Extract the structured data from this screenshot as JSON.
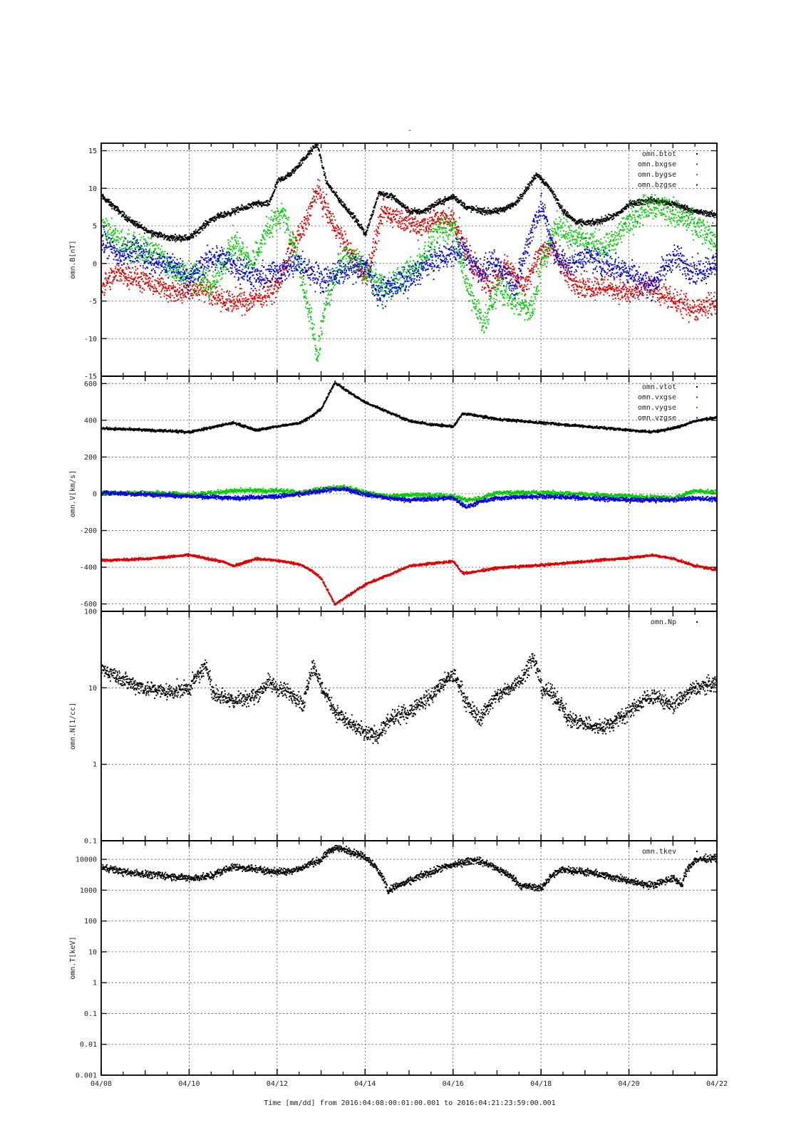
{
  "title": "-",
  "xaxis": {
    "label": "Time [mm/dd]  from 2016:04:08:00:01:00.001  to  2016:04:21:23:59:00.001",
    "range_days": [
      0,
      14
    ],
    "ticks": [
      {
        "day": 0,
        "label": "04/08"
      },
      {
        "day": 2,
        "label": "04/10"
      },
      {
        "day": 4,
        "label": "04/12"
      },
      {
        "day": 6,
        "label": "04/14"
      },
      {
        "day": 8,
        "label": "04/16"
      },
      {
        "day": 10,
        "label": "04/18"
      },
      {
        "day": 12,
        "label": "04/20"
      },
      {
        "day": 14,
        "label": "04/22"
      }
    ]
  },
  "colors": {
    "btot": "#000000",
    "bx": "#dd0000",
    "by": "#00cc00",
    "bz": "#0000dd",
    "grid": "#555555"
  },
  "chart_data": [
    {
      "type": "scatter",
      "ylabel": "omn.B[nT]",
      "ylim": [
        -15,
        16
      ],
      "scale": "linear",
      "yticks": [
        {
          "v": 15,
          "label": "15"
        },
        {
          "v": 10,
          "label": "10"
        },
        {
          "v": 5,
          "label": "5"
        },
        {
          "v": 0,
          "label": "0"
        },
        {
          "v": -5,
          "label": "-5"
        },
        {
          "v": -10,
          "label": "-10"
        },
        {
          "v": -15,
          "label": "-15"
        }
      ],
      "legend": [
        "omn.btot",
        "omn.bxgse",
        "omn.bygse",
        "omn.bzgse"
      ],
      "series": [
        {
          "name": "omn.btot",
          "color": "#000000",
          "noise": 0.35,
          "x": [
            0,
            0.3,
            0.6,
            1,
            1.5,
            2,
            2.5,
            3,
            3.5,
            3.8,
            4,
            4.3,
            4.6,
            4.9,
            5.1,
            5.4,
            5.7,
            6,
            6.3,
            6.6,
            7,
            7.3,
            7.6,
            8,
            8.3,
            8.7,
            9,
            9.4,
            9.9,
            10.2,
            10.5,
            10.8,
            11.2,
            11.7,
            12,
            12.5,
            13,
            13.5,
            14
          ],
          "y": [
            9,
            7.5,
            6,
            4.5,
            3.5,
            3.5,
            6,
            7,
            8,
            8,
            11,
            12,
            14,
            16,
            11,
            8.5,
            6.5,
            4,
            9.5,
            9,
            7,
            7,
            8,
            9,
            7.5,
            7,
            7,
            8,
            12,
            10,
            7,
            5.5,
            5.5,
            6.5,
            8,
            8.5,
            8,
            7,
            6.5
          ]
        },
        {
          "name": "omn.bxgse",
          "color": "#dd0000",
          "noise": 1.3,
          "x": [
            0,
            0.4,
            0.8,
            1.3,
            1.8,
            2.3,
            2.8,
            3.3,
            3.7,
            4,
            4.3,
            4.6,
            4.9,
            5.2,
            5.5,
            5.8,
            6,
            6.4,
            6.8,
            7.2,
            7.6,
            8,
            8.4,
            8.8,
            9.2,
            9.6,
            10,
            10.3,
            10.6,
            11,
            11.5,
            12,
            12.5,
            13,
            13.5,
            14
          ],
          "y": [
            -3,
            -1,
            -2,
            -3,
            -4,
            -3,
            -5,
            -5,
            -4,
            -3,
            2,
            5,
            10,
            6,
            3,
            0,
            -2,
            7,
            6,
            5,
            6,
            6,
            0,
            -3,
            0,
            -3,
            2,
            2,
            -2,
            -3,
            -3,
            -4,
            -3,
            -5,
            -6,
            -5
          ]
        },
        {
          "name": "omn.bygse",
          "color": "#00cc00",
          "noise": 1.6,
          "x": [
            0,
            0.4,
            0.8,
            1.2,
            1.6,
            2,
            2.5,
            3,
            3.4,
            3.8,
            4.1,
            4.4,
            4.7,
            4.9,
            5.1,
            5.4,
            5.7,
            6,
            6.4,
            6.8,
            7.2,
            7.6,
            8,
            8.3,
            8.7,
            9,
            9.4,
            9.8,
            10,
            10.3,
            10.7,
            11,
            11.5,
            12,
            12.5,
            13,
            13.5,
            14
          ],
          "y": [
            5,
            3,
            2,
            2,
            -1,
            -1,
            -3,
            3,
            0,
            5,
            7,
            2,
            -6,
            -12,
            -5,
            0,
            1,
            -1,
            -3,
            -2,
            0,
            4,
            5,
            -3,
            -8,
            -3,
            -5,
            -6,
            0,
            5,
            4,
            3,
            2,
            6,
            8,
            7,
            5,
            3
          ]
        },
        {
          "name": "omn.bzgse",
          "color": "#0000dd",
          "noise": 1.5,
          "x": [
            0,
            0.4,
            0.8,
            1.2,
            1.6,
            2,
            2.5,
            3,
            3.5,
            4,
            4.5,
            5,
            5.5,
            6,
            6.3,
            6.6,
            7,
            7.4,
            7.8,
            8.2,
            8.6,
            9,
            9.4,
            9.8,
            10,
            10.3,
            10.7,
            11,
            11.5,
            12,
            12.5,
            13,
            13.5,
            14
          ],
          "y": [
            3,
            1,
            2,
            0,
            0,
            -2,
            1,
            0,
            -2,
            -1,
            0,
            -2,
            -1,
            0,
            -4,
            -3,
            -2,
            0,
            1,
            2,
            -1,
            0,
            -3,
            5,
            8,
            1,
            0,
            1,
            0,
            -1,
            -3,
            1,
            -1,
            0
          ]
        }
      ]
    },
    {
      "type": "scatter",
      "ylabel": "omn.V[km/s]",
      "ylim": [
        -640,
        640
      ],
      "scale": "linear",
      "yticks": [
        {
          "v": 600,
          "label": "600"
        },
        {
          "v": 400,
          "label": "400"
        },
        {
          "v": 200,
          "label": "200"
        },
        {
          "v": 0,
          "label": "0"
        },
        {
          "v": -200,
          "label": "-200"
        },
        {
          "v": -400,
          "label": "-400"
        },
        {
          "v": -600,
          "label": "-600"
        }
      ],
      "legend": [
        "omn.vtot",
        "omn.vxgse",
        "omn.vygse",
        "omn.vzgse"
      ],
      "series": [
        {
          "name": "omn.vtot",
          "color": "#000000",
          "noise": 6,
          "x": [
            0,
            1,
            2,
            2.8,
            3,
            3.5,
            4,
            4.5,
            4.8,
            5,
            5.3,
            5.6,
            6,
            6.5,
            7,
            7.5,
            8,
            8.2,
            8.5,
            9,
            10,
            11,
            12,
            12.5,
            13,
            13.5,
            14
          ],
          "y": [
            360,
            350,
            340,
            380,
            390,
            350,
            370,
            390,
            430,
            470,
            610,
            560,
            500,
            450,
            400,
            380,
            370,
            440,
            430,
            410,
            390,
            370,
            350,
            340,
            360,
            400,
            420
          ]
        },
        {
          "name": "omn.vxgse",
          "color": "#dd0000",
          "noise": 6,
          "x": [
            0,
            1,
            2,
            2.8,
            3,
            3.5,
            4,
            4.5,
            4.8,
            5,
            5.3,
            5.6,
            6,
            6.5,
            7,
            7.5,
            8,
            8.2,
            8.5,
            9,
            10,
            11,
            12,
            12.5,
            13,
            13.5,
            14
          ],
          "y": [
            -360,
            -350,
            -330,
            -370,
            -390,
            -350,
            -360,
            -380,
            -420,
            -460,
            -600,
            -550,
            -490,
            -440,
            -390,
            -375,
            -365,
            -430,
            -420,
            -400,
            -385,
            -365,
            -345,
            -330,
            -350,
            -390,
            -410
          ]
        },
        {
          "name": "omn.vygse",
          "color": "#00cc00",
          "noise": 10,
          "x": [
            0,
            1,
            2,
            3,
            4,
            4.5,
            5,
            5.5,
            6,
            6.5,
            7,
            8,
            8.3,
            8.6,
            9,
            10,
            11,
            12,
            13,
            13.5,
            14
          ],
          "y": [
            5,
            10,
            0,
            20,
            20,
            10,
            30,
            40,
            10,
            -10,
            0,
            -10,
            -30,
            -20,
            10,
            10,
            0,
            -10,
            -20,
            20,
            10
          ]
        },
        {
          "name": "omn.vzgse",
          "color": "#0000dd",
          "noise": 10,
          "x": [
            0,
            1,
            2,
            3,
            4,
            4.5,
            5,
            5.5,
            6,
            6.5,
            7,
            8,
            8.3,
            8.6,
            9,
            10,
            11,
            12,
            13,
            13.5,
            14
          ],
          "y": [
            10,
            0,
            -10,
            -20,
            -10,
            0,
            20,
            30,
            0,
            -20,
            -30,
            -20,
            -70,
            -40,
            -20,
            -10,
            -20,
            -30,
            -30,
            -20,
            -30
          ]
        }
      ]
    },
    {
      "type": "scatter",
      "ylabel": "omn.N[1/cc]",
      "ylim": [
        0.1,
        100
      ],
      "scale": "log",
      "yticks": [
        {
          "v": 100,
          "label": "100"
        },
        {
          "v": 10,
          "label": "10"
        },
        {
          "v": 1,
          "label": "1"
        },
        {
          "v": 0.1,
          "label": "0.1"
        }
      ],
      "legend": [
        "omn.Np"
      ],
      "series": [
        {
          "name": "omn.Np",
          "color": "#000000",
          "noise": 0.09,
          "x": [
            0,
            0.3,
            0.6,
            1,
            1.5,
            2,
            2.4,
            2.5,
            2.7,
            3,
            3.5,
            3.8,
            4,
            4.4,
            4.6,
            4.8,
            5,
            5.3,
            5.6,
            6,
            6.3,
            6.6,
            7,
            7.5,
            8,
            8.3,
            8.6,
            9,
            9.3,
            9.6,
            9.8,
            10,
            10.3,
            10.6,
            11,
            11.3,
            11.6,
            12,
            12.5,
            13,
            13.5,
            14
          ],
          "y": [
            18,
            15,
            12,
            10,
            9,
            10,
            20,
            9,
            8,
            7,
            8,
            12,
            10,
            8,
            6,
            20,
            10,
            5,
            3.5,
            2.5,
            2.5,
            4,
            5,
            8,
            15,
            6,
            4,
            8,
            10,
            15,
            25,
            10,
            8,
            4,
            3.5,
            3,
            3.5,
            5,
            8,
            6,
            10,
            12
          ]
        }
      ]
    },
    {
      "type": "scatter",
      "ylabel": "omn.T[keV]",
      "ylim": [
        0.001,
        40000
      ],
      "scale": "log",
      "yticks": [
        {
          "v": 10000,
          "label": "10000"
        },
        {
          "v": 1000,
          "label": "1000"
        },
        {
          "v": 100,
          "label": "100"
        },
        {
          "v": 10,
          "label": "10"
        },
        {
          "v": 1,
          "label": "1"
        },
        {
          "v": 0.1,
          "label": "0.1"
        },
        {
          "v": 0.01,
          "label": "0.01"
        },
        {
          "v": 0.001,
          "label": "0.001"
        }
      ],
      "legend": [
        "omn.tkev"
      ],
      "series": [
        {
          "name": "omn.tkev",
          "color": "#000000",
          "noise": 0.1,
          "x": [
            0,
            0.5,
            1,
            1.5,
            2,
            2.5,
            3,
            3.5,
            4,
            4.5,
            5,
            5.3,
            5.6,
            6,
            6.3,
            6.5,
            7,
            7.5,
            8,
            8.5,
            9,
            9.5,
            10,
            10.5,
            11,
            11.5,
            12,
            12.5,
            13,
            13.2,
            13.5,
            14
          ],
          "y": [
            6000,
            4000,
            3500,
            3000,
            2500,
            3000,
            6000,
            5000,
            4000,
            5000,
            10000,
            25000,
            20000,
            12000,
            4000,
            1000,
            2000,
            4000,
            7000,
            10000,
            5000,
            1500,
            1200,
            5000,
            4000,
            3000,
            2000,
            1500,
            2500,
            1500,
            10000,
            12000
          ]
        }
      ]
    }
  ]
}
